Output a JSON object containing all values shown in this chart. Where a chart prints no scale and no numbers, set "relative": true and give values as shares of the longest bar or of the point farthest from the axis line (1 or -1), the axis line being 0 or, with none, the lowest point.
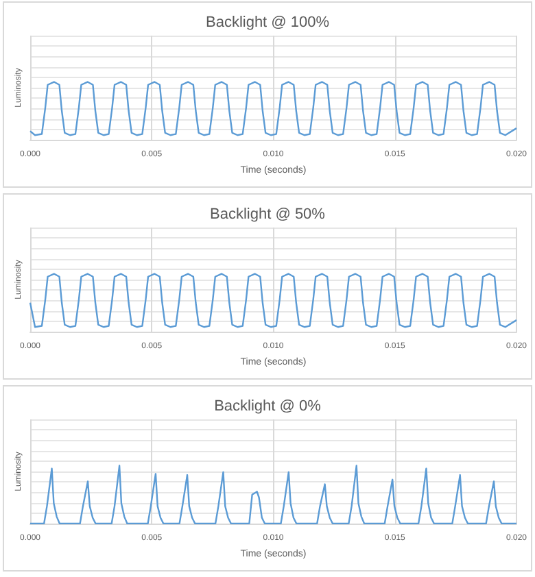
{
  "chart_data": [
    {
      "type": "line",
      "title": "Backlight @ 100%",
      "xlabel": "Time (seconds)",
      "ylabel": "Luminosity",
      "relative": true,
      "grid": true,
      "marker": "none",
      "line_style": "solid",
      "xlim": [
        0,
        0.02
      ],
      "xticks": [
        {
          "value": 0,
          "label": "0.000"
        },
        {
          "value": 0.005,
          "label": "0.005"
        },
        {
          "value": 0.01,
          "label": "0.010"
        },
        {
          "value": 0.015,
          "label": "0.015"
        },
        {
          "value": 0.02,
          "label": "0.020"
        }
      ],
      "series": [
        {
          "color": "#5b9bd5",
          "x": [
            0,
            0.0002,
            0.00048,
            0.00062,
            0.00072,
            0.00098,
            0.0012,
            0.0013,
            0.00142,
            0.00164,
            0.00186,
            0.002,
            0.0021,
            0.00236,
            0.00258,
            0.00268,
            0.0028,
            0.00302,
            0.00323,
            0.00337,
            0.00347,
            0.00373,
            0.00395,
            0.00405,
            0.00417,
            0.00439,
            0.00461,
            0.00475,
            0.00485,
            0.00511,
            0.00533,
            0.00543,
            0.00555,
            0.00577,
            0.00599,
            0.00613,
            0.00623,
            0.00649,
            0.00671,
            0.00681,
            0.00693,
            0.00715,
            0.00737,
            0.00751,
            0.00761,
            0.00787,
            0.00809,
            0.00819,
            0.00831,
            0.00853,
            0.00874,
            0.00888,
            0.00898,
            0.00924,
            0.00946,
            0.00956,
            0.00968,
            0.0099,
            0.01012,
            0.01026,
            0.01036,
            0.01062,
            0.01084,
            0.01094,
            0.01106,
            0.01128,
            0.0115,
            0.01164,
            0.01174,
            0.012,
            0.01222,
            0.01232,
            0.01244,
            0.01266,
            0.01287,
            0.01301,
            0.01311,
            0.01337,
            0.01359,
            0.01369,
            0.01381,
            0.01403,
            0.01425,
            0.01439,
            0.01449,
            0.01475,
            0.01497,
            0.01507,
            0.01519,
            0.01541,
            0.01563,
            0.01577,
            0.01587,
            0.01613,
            0.01635,
            0.01645,
            0.01657,
            0.01679,
            0.017,
            0.01714,
            0.01724,
            0.0175,
            0.01772,
            0.01782,
            0.01794,
            0.01816,
            0.01838,
            0.01852,
            0.01862,
            0.01888,
            0.0191,
            0.0192,
            0.01932,
            0.01954,
            0.02
          ],
          "values": [
            0.15,
            0.08,
            0.1,
            0.55,
            0.95,
            1,
            0.95,
            0.5,
            0.12,
            0.08,
            0.1,
            0.55,
            0.95,
            1,
            0.95,
            0.5,
            0.12,
            0.08,
            0.1,
            0.55,
            0.95,
            1,
            0.95,
            0.5,
            0.12,
            0.08,
            0.1,
            0.55,
            0.95,
            1,
            0.95,
            0.5,
            0.12,
            0.08,
            0.1,
            0.55,
            0.95,
            1,
            0.95,
            0.5,
            0.12,
            0.08,
            0.1,
            0.55,
            0.95,
            1,
            0.95,
            0.5,
            0.12,
            0.08,
            0.1,
            0.55,
            0.95,
            1,
            0.95,
            0.5,
            0.12,
            0.08,
            0.1,
            0.55,
            0.95,
            1,
            0.95,
            0.5,
            0.12,
            0.08,
            0.1,
            0.55,
            0.95,
            1,
            0.95,
            0.5,
            0.12,
            0.08,
            0.1,
            0.55,
            0.95,
            1,
            0.95,
            0.5,
            0.12,
            0.08,
            0.1,
            0.55,
            0.95,
            1,
            0.95,
            0.5,
            0.12,
            0.08,
            0.1,
            0.55,
            0.95,
            1,
            0.95,
            0.5,
            0.12,
            0.08,
            0.1,
            0.55,
            0.95,
            1,
            0.95,
            0.5,
            0.12,
            0.08,
            0.1,
            0.55,
            0.95,
            1,
            0.95,
            0.5,
            0.12,
            0.08,
            0.2
          ]
        }
      ]
    },
    {
      "type": "line",
      "title": "Backlight @ 50%",
      "xlabel": "Time (seconds)",
      "ylabel": "Luminosity",
      "relative": true,
      "grid": true,
      "marker": "none",
      "line_style": "solid",
      "xlim": [
        0,
        0.02
      ],
      "xticks": [
        {
          "value": 0,
          "label": "0.000"
        },
        {
          "value": 0.005,
          "label": "0.005"
        },
        {
          "value": 0.01,
          "label": "0.010"
        },
        {
          "value": 0.015,
          "label": "0.015"
        },
        {
          "value": 0.02,
          "label": "0.020"
        }
      ],
      "series": [
        {
          "color": "#5b9bd5",
          "x": [
            0,
            0.0002,
            0.00048,
            0.00062,
            0.00072,
            0.00098,
            0.0012,
            0.0013,
            0.00142,
            0.00164,
            0.00186,
            0.002,
            0.0021,
            0.00236,
            0.00258,
            0.00268,
            0.0028,
            0.00302,
            0.00323,
            0.00337,
            0.00347,
            0.00373,
            0.00395,
            0.00405,
            0.00417,
            0.00439,
            0.00461,
            0.00475,
            0.00485,
            0.00511,
            0.00533,
            0.00543,
            0.00555,
            0.00577,
            0.00599,
            0.00613,
            0.00623,
            0.00649,
            0.00671,
            0.00681,
            0.00693,
            0.00715,
            0.00737,
            0.00751,
            0.00761,
            0.00787,
            0.00809,
            0.00819,
            0.00831,
            0.00853,
            0.00874,
            0.00888,
            0.00898,
            0.00924,
            0.00946,
            0.00956,
            0.00968,
            0.0099,
            0.01012,
            0.01026,
            0.01036,
            0.01062,
            0.01084,
            0.01094,
            0.01106,
            0.01128,
            0.0115,
            0.01164,
            0.01174,
            0.012,
            0.01222,
            0.01232,
            0.01244,
            0.01266,
            0.01287,
            0.01301,
            0.01311,
            0.01337,
            0.01359,
            0.01369,
            0.01381,
            0.01403,
            0.01425,
            0.01439,
            0.01449,
            0.01475,
            0.01497,
            0.01507,
            0.01519,
            0.01541,
            0.01563,
            0.01577,
            0.01587,
            0.01613,
            0.01635,
            0.01645,
            0.01657,
            0.01679,
            0.017,
            0.01714,
            0.01724,
            0.0175,
            0.01772,
            0.01782,
            0.01794,
            0.01816,
            0.01838,
            0.01852,
            0.01862,
            0.01888,
            0.0191,
            0.0192,
            0.01932,
            0.01954,
            0.02
          ],
          "values": [
            0.5,
            0.08,
            0.1,
            0.55,
            0.95,
            1,
            0.95,
            0.5,
            0.12,
            0.08,
            0.1,
            0.55,
            0.95,
            1,
            0.95,
            0.5,
            0.12,
            0.08,
            0.1,
            0.55,
            0.95,
            1,
            0.95,
            0.5,
            0.12,
            0.08,
            0.1,
            0.55,
            0.95,
            1,
            0.95,
            0.5,
            0.12,
            0.08,
            0.1,
            0.55,
            0.95,
            1,
            0.95,
            0.5,
            0.12,
            0.08,
            0.1,
            0.55,
            0.95,
            1,
            0.95,
            0.5,
            0.12,
            0.08,
            0.1,
            0.55,
            0.95,
            1,
            0.95,
            0.5,
            0.12,
            0.08,
            0.1,
            0.55,
            0.95,
            1,
            0.95,
            0.5,
            0.12,
            0.08,
            0.1,
            0.55,
            0.95,
            1,
            0.95,
            0.5,
            0.12,
            0.08,
            0.1,
            0.55,
            0.95,
            1,
            0.95,
            0.5,
            0.12,
            0.08,
            0.1,
            0.55,
            0.95,
            1,
            0.95,
            0.5,
            0.12,
            0.08,
            0.1,
            0.55,
            0.95,
            1,
            0.95,
            0.5,
            0.12,
            0.08,
            0.1,
            0.55,
            0.95,
            1,
            0.95,
            0.5,
            0.12,
            0.08,
            0.1,
            0.55,
            0.95,
            1,
            0.95,
            0.5,
            0.12,
            0.08,
            0.2
          ]
        }
      ]
    },
    {
      "type": "line",
      "title": "Backlight @ 0%",
      "xlabel": "Time (seconds)",
      "ylabel": "Luminosity",
      "relative": true,
      "grid": true,
      "marker": "none",
      "line_style": "solid",
      "xlim": [
        0,
        0.02
      ],
      "xticks": [
        {
          "value": 0,
          "label": "0.000"
        },
        {
          "value": 0.005,
          "label": "0.005"
        },
        {
          "value": 0.01,
          "label": "0.010"
        },
        {
          "value": 0.015,
          "label": "0.015"
        },
        {
          "value": 0.02,
          "label": "0.020"
        }
      ],
      "series": [
        {
          "color": "#5b9bd5",
          "x": [
            0,
            0.00057,
            0.00069,
            0.00089,
            0.00097,
            0.00109,
            0.00121,
            0.00205,
            0.00217,
            0.00237,
            0.00245,
            0.00257,
            0.00269,
            0.00335,
            0.00347,
            0.00367,
            0.00375,
            0.00387,
            0.00399,
            0.00484,
            0.00496,
            0.00516,
            0.00524,
            0.00536,
            0.00548,
            0.00614,
            0.00626,
            0.00646,
            0.00654,
            0.00666,
            0.00678,
            0.00762,
            0.00774,
            0.00794,
            0.00802,
            0.00814,
            0.00826,
            0.00901,
            0.00913,
            0.00933,
            0.00941,
            0.00953,
            0.00965,
            0.01031,
            0.01043,
            0.01063,
            0.01071,
            0.01083,
            0.01095,
            0.0118,
            0.01192,
            0.01212,
            0.0122,
            0.01232,
            0.01244,
            0.0131,
            0.01322,
            0.01342,
            0.0135,
            0.01362,
            0.01374,
            0.01458,
            0.0147,
            0.0149,
            0.01498,
            0.0151,
            0.01522,
            0.01597,
            0.01609,
            0.01629,
            0.01637,
            0.01649,
            0.01661,
            0.01736,
            0.01748,
            0.01768,
            0.01776,
            0.01788,
            0.018,
            0.01875,
            0.01887,
            0.01907,
            0.01915,
            0.01927,
            0.01939,
            0.02
          ],
          "values": [
            0,
            0,
            0.3,
            0.95,
            0.35,
            0.12,
            0,
            0,
            0.3,
            0.73,
            0.3,
            0.1,
            0,
            0,
            0.3,
            1,
            0.35,
            0.12,
            0,
            0,
            0.3,
            0.86,
            0.3,
            0.1,
            0,
            0,
            0.3,
            0.84,
            0.3,
            0.1,
            0,
            0,
            0.3,
            0.89,
            0.3,
            0.1,
            0,
            0,
            0.5,
            0.55,
            0.45,
            0.1,
            0,
            0,
            0.3,
            0.89,
            0.35,
            0.1,
            0,
            0,
            0.3,
            0.68,
            0.3,
            0.1,
            0,
            0,
            0.3,
            1,
            0.35,
            0.12,
            0,
            0,
            0.3,
            0.76,
            0.3,
            0.1,
            0,
            0,
            0.3,
            0.95,
            0.35,
            0.1,
            0,
            0,
            0.3,
            0.84,
            0.3,
            0.1,
            0,
            0,
            0.3,
            0.73,
            0.3,
            0.1,
            0,
            0
          ]
        }
      ]
    }
  ]
}
